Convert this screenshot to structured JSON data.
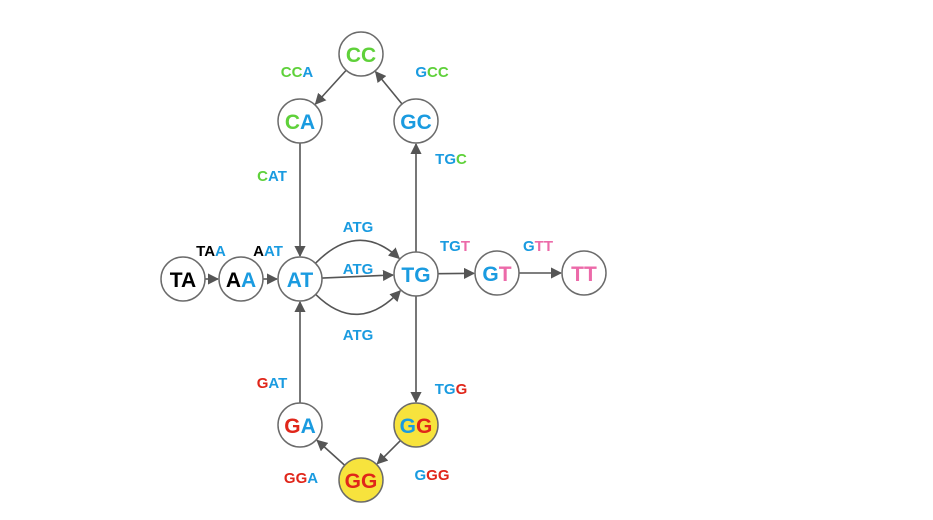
{
  "colors": {
    "T": "#000000",
    "A": "#1a9be0",
    "C": "#5fd13a",
    "G": "#e0261a",
    "pink": "#ec6aa9",
    "highlight": "#f7e33d",
    "edge": "#555555",
    "node_border": "#6b6b6b"
  },
  "nodes": [
    {
      "id": "TA",
      "label": "TA",
      "letter_colors": [
        "T",
        "T"
      ],
      "highlight": false
    },
    {
      "id": "AA",
      "label": "AA",
      "letter_colors": [
        "T",
        "A"
      ],
      "highlight": false
    },
    {
      "id": "AT",
      "label": "AT",
      "letter_colors": [
        "A",
        "A"
      ],
      "highlight": false
    },
    {
      "id": "TG",
      "label": "TG",
      "letter_colors": [
        "A",
        "A"
      ],
      "highlight": false
    },
    {
      "id": "GT",
      "label": "GT",
      "letter_colors": [
        "A",
        "pink"
      ],
      "highlight": false
    },
    {
      "id": "TT",
      "label": "TT",
      "letter_colors": [
        "pink",
        "pink"
      ],
      "highlight": false
    },
    {
      "id": "CA",
      "label": "CA",
      "letter_colors": [
        "C",
        "A"
      ],
      "highlight": false
    },
    {
      "id": "CC",
      "label": "CC",
      "letter_colors": [
        "C",
        "C"
      ],
      "highlight": false
    },
    {
      "id": "GC",
      "label": "GC",
      "letter_colors": [
        "A",
        "A"
      ],
      "highlight": false
    },
    {
      "id": "GA",
      "label": "GA",
      "letter_colors": [
        "G",
        "A"
      ],
      "highlight": false
    },
    {
      "id": "GG_bottom",
      "label": "GG",
      "letter_colors": [
        "G",
        "G"
      ],
      "highlight": true
    },
    {
      "id": "GG_right",
      "label": "GG",
      "letter_colors": [
        "A",
        "G"
      ],
      "highlight": true
    }
  ],
  "edges": [
    {
      "id": "TA-AA",
      "from": "TA",
      "to": "AA",
      "label": "TAA",
      "letter_colors": [
        "T",
        "T",
        "A"
      ]
    },
    {
      "id": "AA-AT",
      "from": "AA",
      "to": "AT",
      "label": "AAT",
      "letter_colors": [
        "T",
        "A",
        "A"
      ]
    },
    {
      "id": "AT-TG-top",
      "from": "AT",
      "to": "TG",
      "label": "ATG",
      "letter_colors": [
        "A",
        "A",
        "A"
      ]
    },
    {
      "id": "AT-TG-mid",
      "from": "AT",
      "to": "TG",
      "label": "ATG",
      "letter_colors": [
        "A",
        "A",
        "A"
      ]
    },
    {
      "id": "AT-TG-bot",
      "from": "AT",
      "to": "TG",
      "label": "ATG",
      "letter_colors": [
        "A",
        "A",
        "A"
      ]
    },
    {
      "id": "TG-GT",
      "from": "TG",
      "to": "GT",
      "label": "TGT",
      "letter_colors": [
        "A",
        "A",
        "pink"
      ]
    },
    {
      "id": "GT-TT",
      "from": "GT",
      "to": "TT",
      "label": "GTT",
      "letter_colors": [
        "A",
        "pink",
        "pink"
      ]
    },
    {
      "id": "TG-GC",
      "from": "TG",
      "to": "GC",
      "label": "TGC",
      "letter_colors": [
        "A",
        "A",
        "C"
      ]
    },
    {
      "id": "GC-CC",
      "from": "GC",
      "to": "CC",
      "label": "GCC",
      "letter_colors": [
        "A",
        "C",
        "C"
      ]
    },
    {
      "id": "CC-CA",
      "from": "CC",
      "to": "CA",
      "label": "CCA",
      "letter_colors": [
        "C",
        "C",
        "A"
      ]
    },
    {
      "id": "CA-AT",
      "from": "CA",
      "to": "AT",
      "label": "CAT",
      "letter_colors": [
        "C",
        "A",
        "A"
      ]
    },
    {
      "id": "TG-GG",
      "from": "TG",
      "to": "GG_right",
      "label": "TGG",
      "letter_colors": [
        "A",
        "A",
        "G"
      ]
    },
    {
      "id": "GG-GG",
      "from": "GG_right",
      "to": "GG_bottom",
      "label": "GGG",
      "letter_colors": [
        "A",
        "G",
        "G"
      ]
    },
    {
      "id": "GG-GA",
      "from": "GG_bottom",
      "to": "GA",
      "label": "GGA",
      "letter_colors": [
        "G",
        "G",
        "A"
      ]
    },
    {
      "id": "GA-AT",
      "from": "GA",
      "to": "AT",
      "label": "GAT",
      "letter_colors": [
        "G",
        "A",
        "A"
      ]
    }
  ]
}
